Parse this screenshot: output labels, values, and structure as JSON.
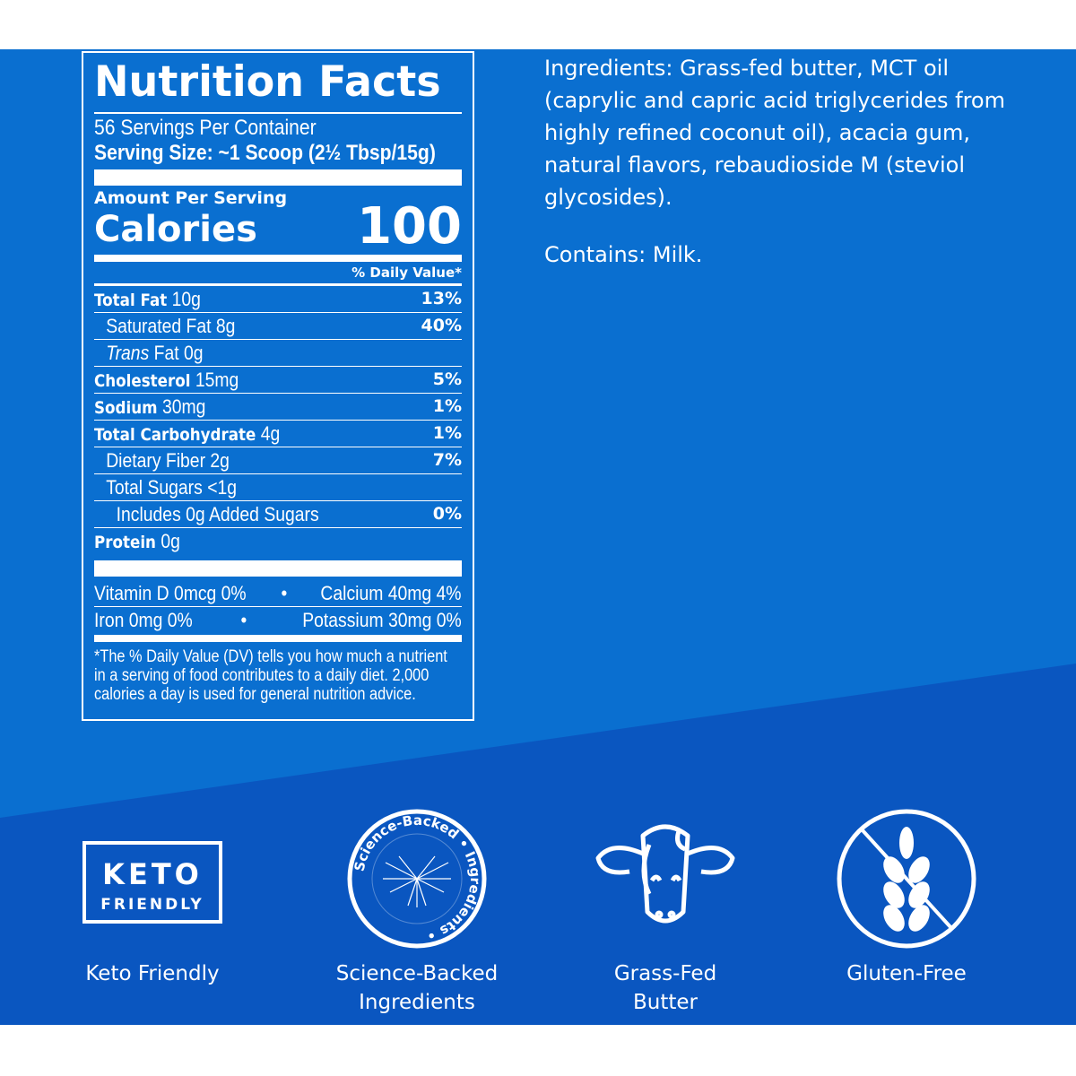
{
  "colors": {
    "background_light": "#0a6fd0",
    "background_dark": "#0a56c0",
    "text": "#ffffff"
  },
  "nutrition": {
    "title": "Nutrition Facts",
    "servings": "56 Servings Per Container",
    "serving_size": "Serving Size: ~1 Scoop (2½ Tbsp/15g)",
    "amount_per_serving": "Amount Per Serving",
    "calories_label": "Calories",
    "calories": "100",
    "dv_header": "% Daily Value*",
    "rows": [
      {
        "bold": "Total Fat",
        "rest": " 10g",
        "dv": "13%"
      },
      {
        "bold": "",
        "rest": "Saturated Fat 8g",
        "dv": "40%"
      },
      {
        "bold": "",
        "italic": "Trans",
        "rest": " Fat 0g",
        "dv": ""
      },
      {
        "bold": "Cholesterol",
        "rest": " 15mg",
        "dv": "5%"
      },
      {
        "bold": "Sodium",
        "rest": " 30mg",
        "dv": "1%"
      },
      {
        "bold": "Total Carbohydrate",
        "rest": " 4g",
        "dv": "1%"
      },
      {
        "bold": "",
        "rest": "Dietary Fiber 2g",
        "dv": "7%"
      },
      {
        "bold": "",
        "rest": "Total Sugars <1g",
        "dv": ""
      },
      {
        "bold": "",
        "rest": "Includes 0g Added Sugars",
        "dv": "0%"
      },
      {
        "bold": "Protein",
        "rest": " 0g",
        "dv": ""
      }
    ],
    "vitamins": [
      [
        "Vitamin D 0mcg 0%",
        "•",
        "Calcium 40mg 4%"
      ],
      [
        "Iron 0mg 0%",
        "•",
        "Potassium 30mg 0%"
      ]
    ],
    "footnote": "*The % Daily Value (DV) tells you how much a nutrient in a serving of food contributes to a daily diet. 2,000 calories a day is used for general nutrition advice."
  },
  "ingredients": "Ingredients: Grass-fed butter, MCT oil (caprylic and capric acid triglycerides from highly refined coconut oil), acacia gum, natural flavors, rebaudioside M (steviol glycosides).",
  "contains": "Contains: Milk.",
  "badges": [
    {
      "icon": "keto-friendly-icon",
      "icon_text_1": "KETO",
      "icon_text_2": "FRIENDLY",
      "label": "Keto Friendly"
    },
    {
      "icon": "science-backed-seal-icon",
      "icon_text": "Science-Backed • Ingredients •",
      "label_1": "Science-Backed",
      "label_2": "Ingredients"
    },
    {
      "icon": "cow-icon",
      "label_1": "Grass-Fed",
      "label_2": "Butter"
    },
    {
      "icon": "no-wheat-icon",
      "label": "Gluten-Free"
    }
  ]
}
